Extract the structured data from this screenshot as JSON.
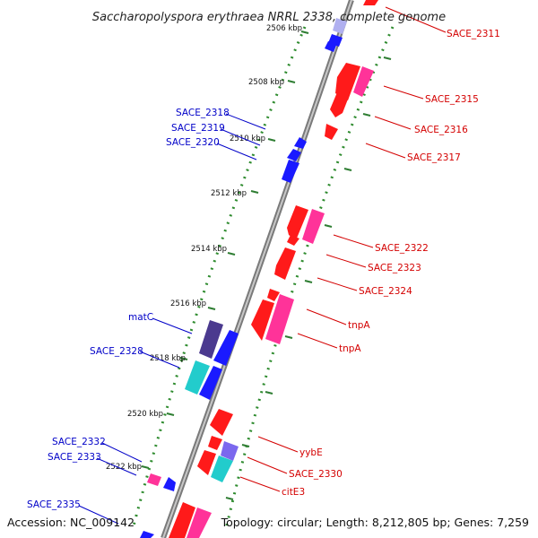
{
  "title": "Saccharopolyspora erythraea NRRL 2338, complete genome",
  "footer": {
    "accession": "Accession: NC_009142",
    "summary": "Topology: circular; Length: 8,212,805 bp; Genes: 7,259"
  },
  "scale_ticks": [
    {
      "label": "2506 kbp"
    },
    {
      "label": "2508 kbp"
    },
    {
      "label": "2510 kbp"
    },
    {
      "label": "2512 kbp"
    },
    {
      "label": "2514 kbp"
    },
    {
      "label": "2516 kbp"
    },
    {
      "label": "2518 kbp"
    },
    {
      "label": "2520 kbp"
    },
    {
      "label": "2522 kbp"
    }
  ],
  "gene_labels_forward": [
    "SACE_2311",
    "SACE_2315",
    "SACE_2316",
    "SACE_2317",
    "SACE_2322",
    "SACE_2323",
    "SACE_2324",
    "tnpA",
    "tnpA",
    "yybE",
    "SACE_2330",
    "citE3"
  ],
  "gene_labels_reverse": [
    "SACE_2318",
    "SACE_2319",
    "SACE_2320",
    "matC",
    "SACE_2328",
    "SACE_2332",
    "SACE_2333",
    "SACE_2335"
  ],
  "colors": {
    "forward_cds": "#ff1a1a",
    "forward_feature": "#ff3399",
    "reverse_cds": "#1a1aff",
    "reverse_feature_dark": "#4b3a8f",
    "reverse_feature_cyan": "#22d3d3",
    "backbone": "#808080",
    "tick": "#2e7d32",
    "label_forward": "#d40000",
    "label_reverse": "#0000c8"
  }
}
